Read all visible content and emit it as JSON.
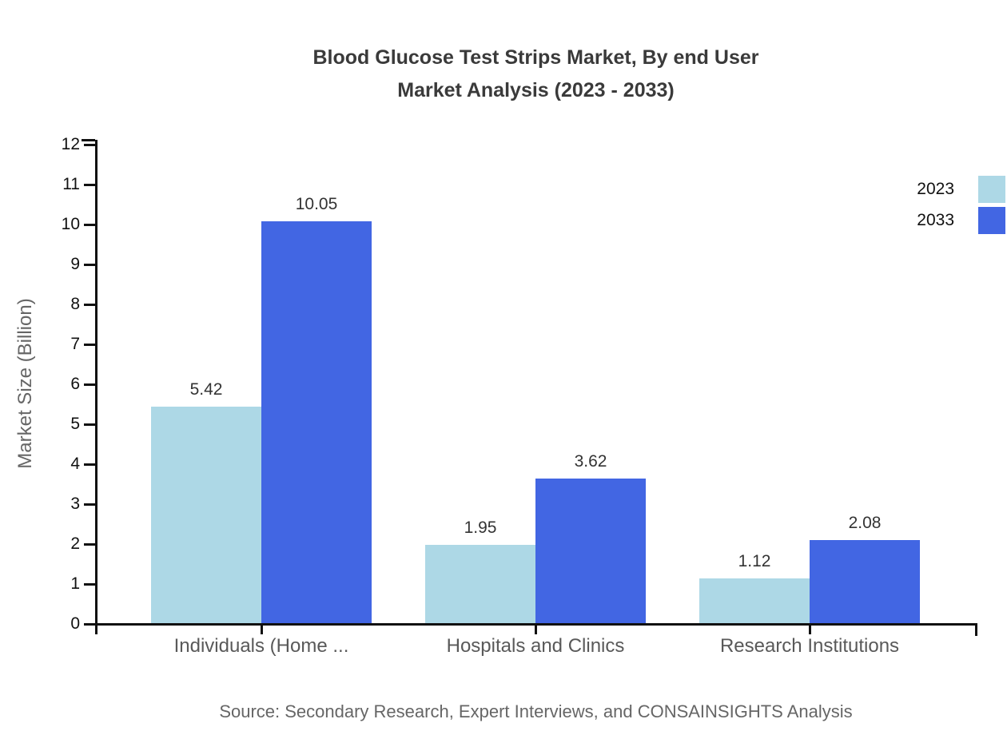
{
  "chart_data": {
    "type": "bar",
    "title_lines": [
      "Blood Glucose Test Strips Market, By end User",
      "Market Analysis (2023 - 2033)"
    ],
    "ylabel": "Market Size (Billion)",
    "categories": [
      "Individuals (Home ...",
      "Hospitals and Clinics",
      "Research Institutions"
    ],
    "series": [
      {
        "name": "2023",
        "color": "#ADD8E6",
        "values": [
          5.42,
          1.95,
          1.12
        ]
      },
      {
        "name": "2033",
        "color": "#4266E3",
        "values": [
          10.05,
          3.62,
          2.08
        ]
      }
    ],
    "ylim": [
      0,
      12
    ],
    "ytick_step": 1,
    "grid": false,
    "legend_position": "top-right",
    "value_labels": true,
    "axis_color": "#111111",
    "source": "Source: Secondary Research, Expert Interviews, and CONSAINSIGHTS Analysis"
  }
}
